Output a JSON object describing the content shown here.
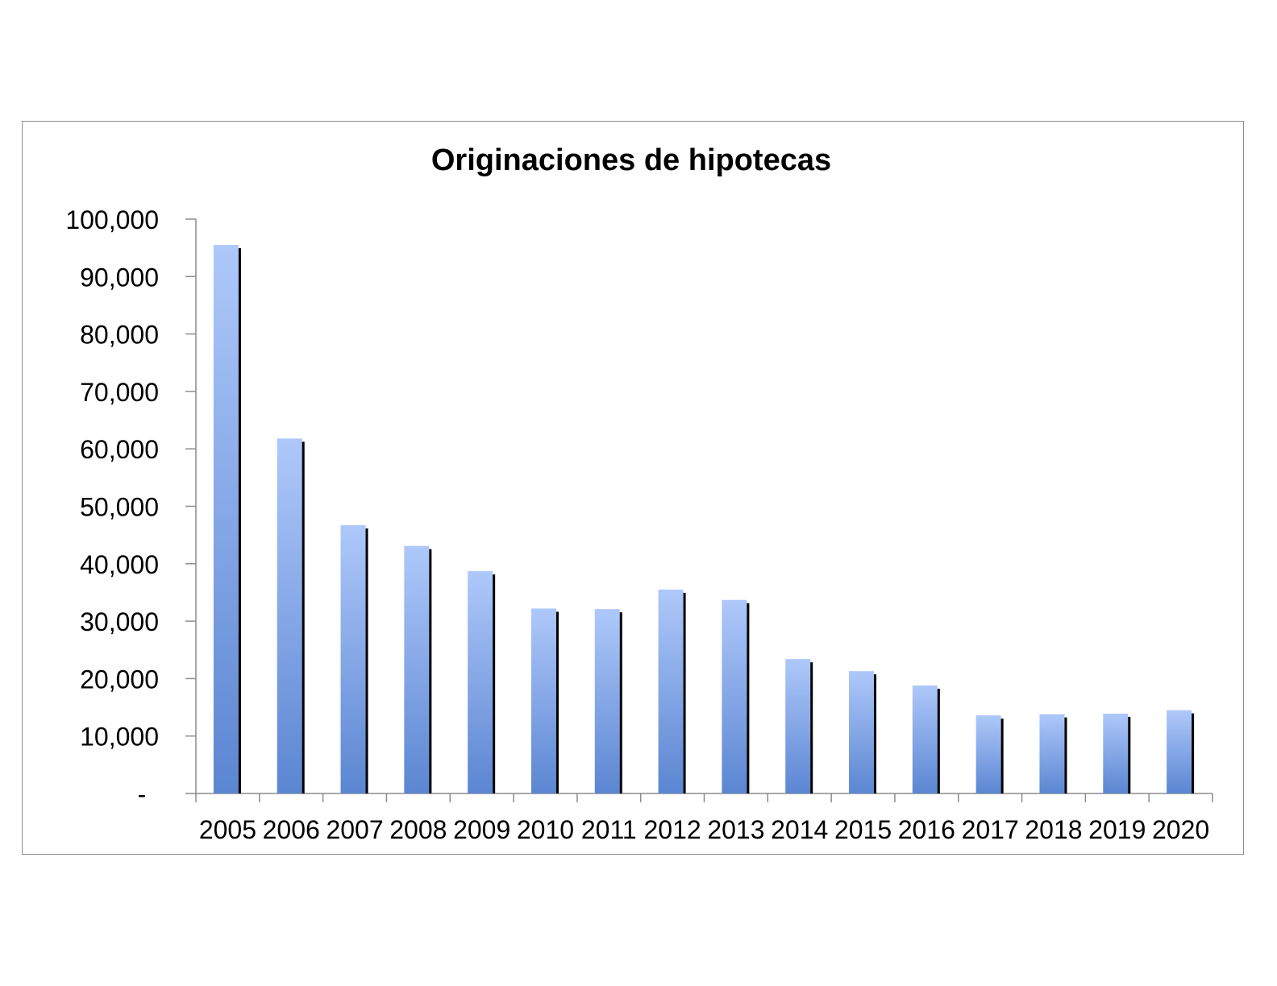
{
  "chart_data": {
    "type": "bar",
    "title": "Originaciones de hipotecas",
    "xlabel": "",
    "ylabel": "",
    "categories": [
      "2005",
      "2006",
      "2007",
      "2008",
      "2009",
      "2010",
      "2011",
      "2012",
      "2013",
      "2014",
      "2015",
      "2016",
      "2017",
      "2018",
      "2019",
      "2020"
    ],
    "values": [
      95500,
      61800,
      46700,
      43100,
      38700,
      32200,
      32100,
      35500,
      33700,
      23400,
      21300,
      18800,
      13600,
      13800,
      13900,
      14500
    ],
    "ylim": [
      0,
      100000
    ],
    "yticks": [
      0,
      10000,
      20000,
      30000,
      40000,
      50000,
      60000,
      70000,
      80000,
      90000,
      100000
    ],
    "ytick_labels": [
      "-",
      "10,000",
      "20,000",
      "30,000",
      "40,000",
      "50,000",
      "60,000",
      "70,000",
      "80,000",
      "90,000",
      "100,000"
    ],
    "grid": false,
    "legend": "none",
    "colors": {
      "bar_top": "#aec8fa",
      "bar_bottom": "#5b86d2",
      "bar_shadow": "#000000",
      "axis": "#8c8c8c",
      "frame": "#8c8c8c"
    }
  }
}
